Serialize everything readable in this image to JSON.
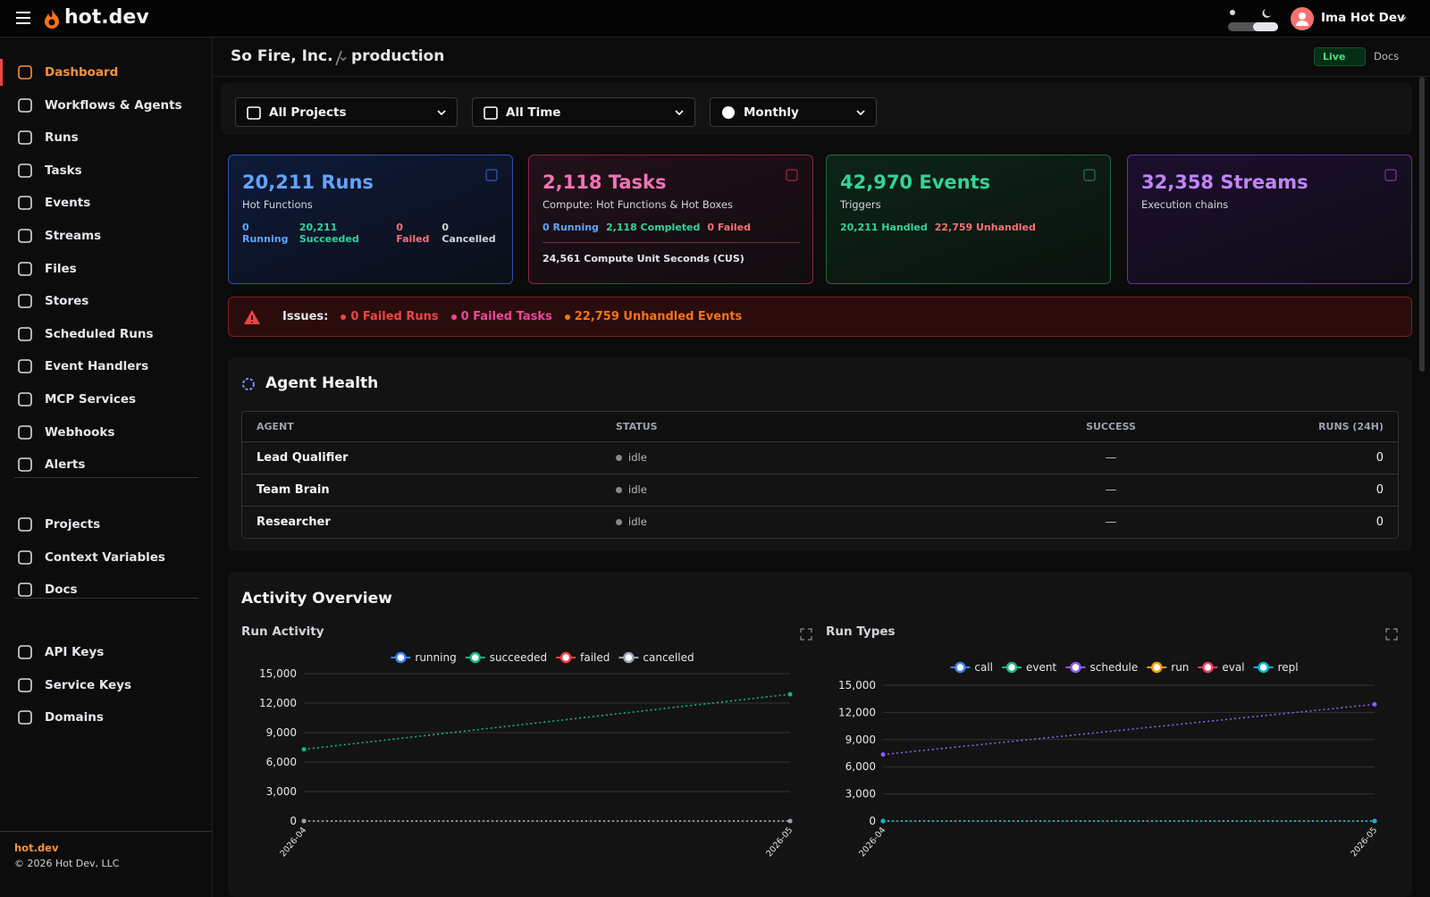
{
  "header": {
    "brand": "hot.dev",
    "user": "Ima Hot Dev"
  },
  "sidebar": {
    "groups": [
      [
        "Dashboard",
        "Workflows & Agents",
        "Runs",
        "Tasks",
        "Events",
        "Streams",
        "Files",
        "Stores",
        "Scheduled Runs",
        "Event Handlers",
        "MCP Services",
        "Webhooks",
        "Alerts"
      ],
      [
        "Projects",
        "Context Variables",
        "Docs"
      ],
      [
        "API Keys",
        "Service Keys",
        "Domains"
      ]
    ],
    "footer_link": "hot.dev",
    "copyright": "© 2026 Hot Dev, LLC"
  },
  "breadcrumb": {
    "org": "So Fire, Inc.",
    "env": "production",
    "live": "Live",
    "docs": "Docs"
  },
  "filters": [
    "All Projects",
    "All Time",
    "Monthly"
  ],
  "cards": [
    {
      "title": "20,211 Runs",
      "color": "#60a5fa",
      "subtitle": "Hot Functions",
      "stats": [
        {
          "text": "0 Running",
          "color": "#60a5fa"
        },
        {
          "text": "20,211 Succeeded",
          "color": "#34d399"
        },
        {
          "text": "0 Failed",
          "color": "#f87171"
        },
        {
          "text": "0 Cancelled",
          "color": "#d1d5db"
        }
      ]
    },
    {
      "title": "2,118 Tasks",
      "color": "#f472b6",
      "subtitle": "Compute: Hot Functions & Hot Boxes",
      "stats": [
        {
          "text": "0 Running",
          "color": "#60a5fa"
        },
        {
          "text": "2,118 Completed",
          "color": "#34d399"
        },
        {
          "text": "0 Failed",
          "color": "#f87171"
        }
      ],
      "note": "24,561 Compute Unit Seconds (CUS)"
    },
    {
      "title": "42,970 Events",
      "color": "#34d399",
      "subtitle": "Triggers",
      "stats": [
        {
          "text": "20,211 Handled",
          "color": "#34d399"
        },
        {
          "text": "22,759 Unhandled",
          "color": "#f87171"
        }
      ]
    },
    {
      "title": "32,358 Streams",
      "color": "#c084fc",
      "subtitle": "Execution chains",
      "stats": []
    }
  ],
  "issues": {
    "label": "Issues:",
    "items": [
      {
        "text": "0 Failed Runs",
        "color": "#ef4444"
      },
      {
        "text": "0 Failed Tasks",
        "color": "#ec4899"
      },
      {
        "text": "22,759 Unhandled Events",
        "color": "#f97316"
      }
    ]
  },
  "agent_health": {
    "title": "Agent Health",
    "columns": [
      "AGENT",
      "STATUS",
      "SUCCESS",
      "RUNS (24H)"
    ],
    "rows": [
      [
        "Lead Qualifier",
        "idle",
        "—",
        "0"
      ],
      [
        "Team Brain",
        "idle",
        "—",
        "0"
      ],
      [
        "Researcher",
        "idle",
        "—",
        "0"
      ]
    ]
  },
  "activity": {
    "title": "Activity Overview"
  },
  "chart_data": [
    {
      "type": "line",
      "title": "Run Activity",
      "categories": [
        "2026-04",
        "2026-05"
      ],
      "series": [
        {
          "name": "running",
          "color": "#3b82f6",
          "values": [
            0,
            0
          ]
        },
        {
          "name": "succeeded",
          "color": "#10b981",
          "values": [
            7300,
            12900
          ]
        },
        {
          "name": "failed",
          "color": "#ef4444",
          "values": [
            0,
            0
          ]
        },
        {
          "name": "cancelled",
          "color": "#9ca3af",
          "values": [
            0,
            0
          ]
        }
      ],
      "ylim": [
        0,
        15000
      ],
      "yticks": [
        0,
        {
          "value": 3000,
          "label": "3,000"
        },
        {
          "value": 6000,
          "label": "6,000"
        },
        {
          "value": 9000,
          "label": "9,000"
        },
        {
          "value": 12000,
          "label": "12,000"
        },
        {
          "value": 15000,
          "label": "15,000"
        }
      ],
      "grid": true
    },
    {
      "type": "line",
      "title": "Run Types",
      "categories": [
        "2026-04",
        "2026-05"
      ],
      "series": [
        {
          "name": "call",
          "color": "#3b82f6",
          "values": [
            0,
            0
          ]
        },
        {
          "name": "event",
          "color": "#10b981",
          "values": [
            0,
            0
          ]
        },
        {
          "name": "schedule",
          "color": "#8b5cf6",
          "values": [
            7350,
            12890
          ]
        },
        {
          "name": "run",
          "color": "#f59e0b",
          "values": [
            0,
            0
          ]
        },
        {
          "name": "eval",
          "color": "#f43f5e",
          "values": [
            0,
            0
          ]
        },
        {
          "name": "repl",
          "color": "#06b6d4",
          "values": [
            0,
            0
          ]
        }
      ],
      "ylim": [
        0,
        15000
      ],
      "yticks": [
        0,
        {
          "value": 3000,
          "label": "3,000"
        },
        {
          "value": 6000,
          "label": "6,000"
        },
        {
          "value": 9000,
          "label": "9,000"
        },
        {
          "value": 12000,
          "label": "12,000"
        },
        {
          "value": 15000,
          "label": "15,000"
        }
      ],
      "grid": true
    }
  ]
}
